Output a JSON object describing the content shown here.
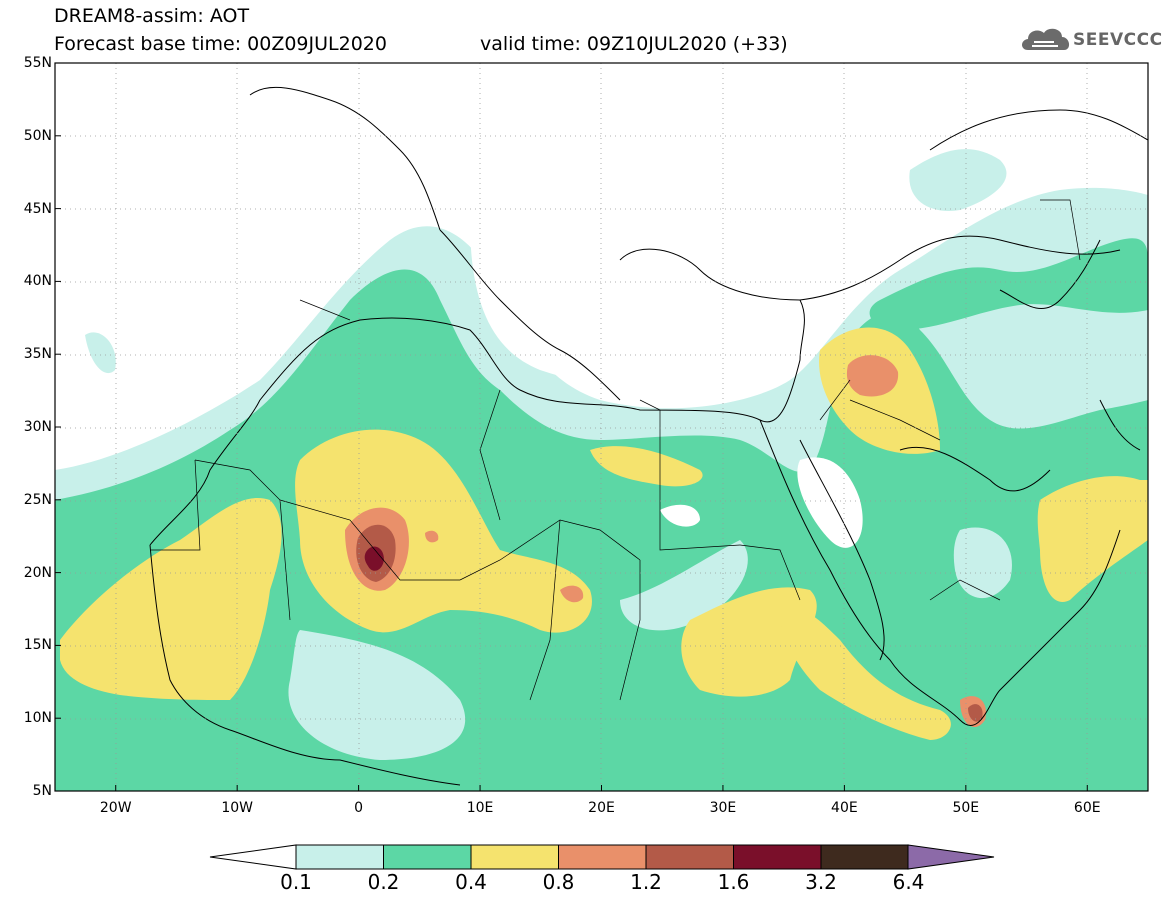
{
  "header": {
    "title": "DREAM8-assim: AOT",
    "base_time": "Forecast base time: 00Z09JUL2020",
    "valid_time": "valid time: 09Z10JUL2020 (+33)"
  },
  "logo": {
    "text": "SEEVCCC",
    "icon": "cloud-icon"
  },
  "map": {
    "lon_range": [
      -25,
      65
    ],
    "lat_range": [
      5,
      55
    ],
    "lat_labels": [
      "55N",
      "50N",
      "45N",
      "40N",
      "35N",
      "30N",
      "25N",
      "20N",
      "15N",
      "10N",
      "5N"
    ],
    "lon_labels": [
      "20W",
      "10W",
      "0",
      "10E",
      "20E",
      "30E",
      "40E",
      "50E",
      "60E"
    ],
    "lat_ticks": [
      55,
      50,
      45,
      40,
      35,
      30,
      25,
      20,
      15,
      10,
      5
    ],
    "lon_ticks": [
      -20,
      -10,
      0,
      10,
      20,
      30,
      40,
      50,
      60
    ]
  },
  "colorbar": {
    "labels": [
      "0.1",
      "0.2",
      "0.4",
      "0.8",
      "1.2",
      "1.6",
      "3.2",
      "6.4"
    ],
    "colors": [
      "#c8f0ea",
      "#5cd7a5",
      "#f5e36e",
      "#e9906a",
      "#b35a48",
      "#7a0f2a",
      "#3e2a1e",
      "#8c6aa8"
    ]
  }
}
